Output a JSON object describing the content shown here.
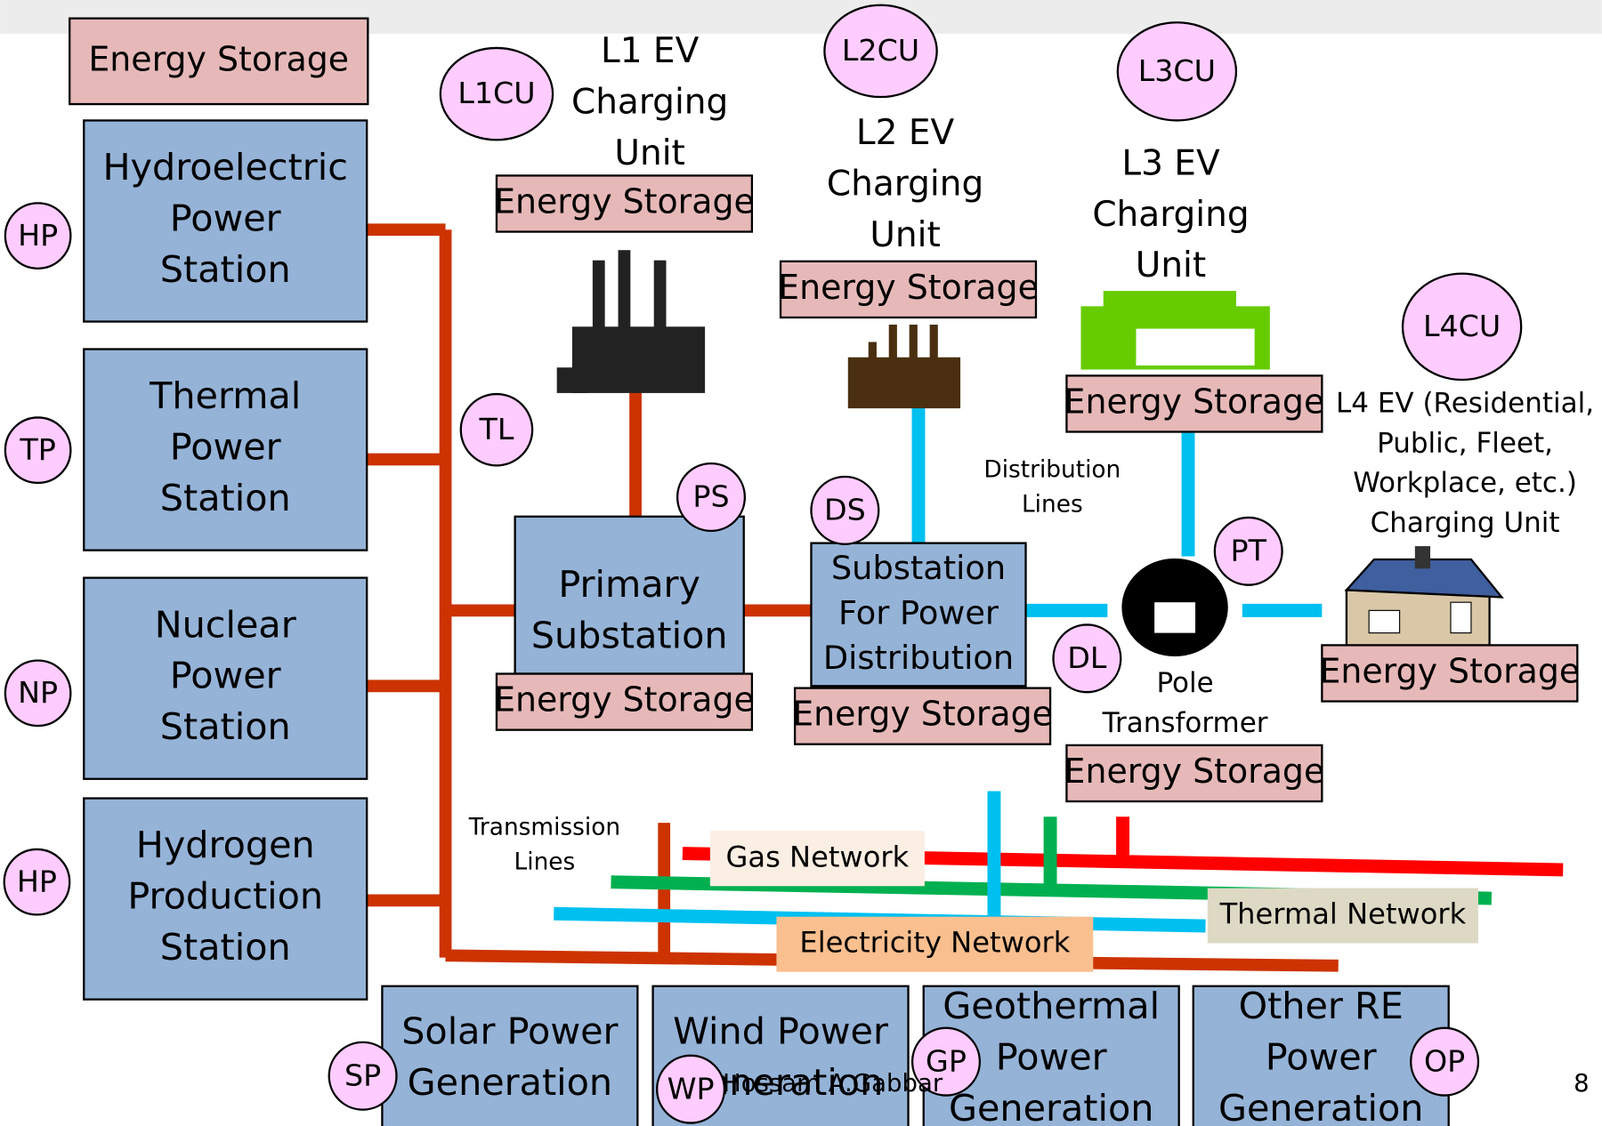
{
  "storage_labels": [
    "Energy Storage",
    "Energy Storage",
    "Energy Storage",
    "Energy Storage",
    "Energy Storage",
    "Energy Storage",
    "Energy Storage",
    "Energy Storage"
  ],
  "boxes": [
    {
      "lines": [
        "Hydroelectric",
        "Power",
        "Station"
      ]
    },
    {
      "lines": [
        "Thermal",
        "Power",
        "Station"
      ]
    },
    {
      "lines": [
        "Nuclear",
        "Power",
        "Station"
      ]
    },
    {
      "lines": [
        "Hydrogen",
        "Production",
        "Station"
      ]
    },
    {
      "lines": [
        "Primary",
        "Substation"
      ]
    },
    {
      "lines": [
        "Substation",
        "For Power",
        "Distribution"
      ]
    },
    {
      "lines": [
        "Solar Power",
        "Generation"
      ]
    },
    {
      "lines": [
        "Wind Power",
        "Generation"
      ]
    },
    {
      "lines": [
        "Geothermal",
        "Power",
        "Generation"
      ]
    },
    {
      "lines": [
        "Other RE",
        "Power",
        "Generation"
      ]
    }
  ],
  "circles": [
    "HP",
    "TP",
    "NP",
    "HP",
    "L1CU",
    "L2CU",
    "L3CU",
    "L4CU",
    "TL",
    "PS",
    "DS",
    "PT",
    "DL",
    "SP",
    "WP",
    "GP",
    "OP"
  ],
  "labels": [
    {
      "lines": [
        "L1 EV",
        "Charging",
        "Unit"
      ]
    },
    {
      "lines": [
        "L2 EV",
        "Charging",
        "Unit"
      ]
    },
    {
      "lines": [
        "L3 EV",
        "Charging",
        "Unit"
      ]
    },
    {
      "lines": [
        "L4 EV (Residential,",
        "Public, Fleet,",
        "Workplace, etc.)",
        "Charging Unit"
      ]
    },
    {
      "lines": [
        "Distribution",
        "Lines"
      ]
    },
    {
      "lines": [
        "Transmission",
        "Lines"
      ]
    },
    {
      "lines": [
        "Pole",
        "Transformer"
      ]
    }
  ],
  "networks": [
    "Gas Network",
    "Thermal Network",
    "Electricity Network"
  ],
  "footer": {
    "author": "Hossam A.Gabbar",
    "page": "8"
  }
}
